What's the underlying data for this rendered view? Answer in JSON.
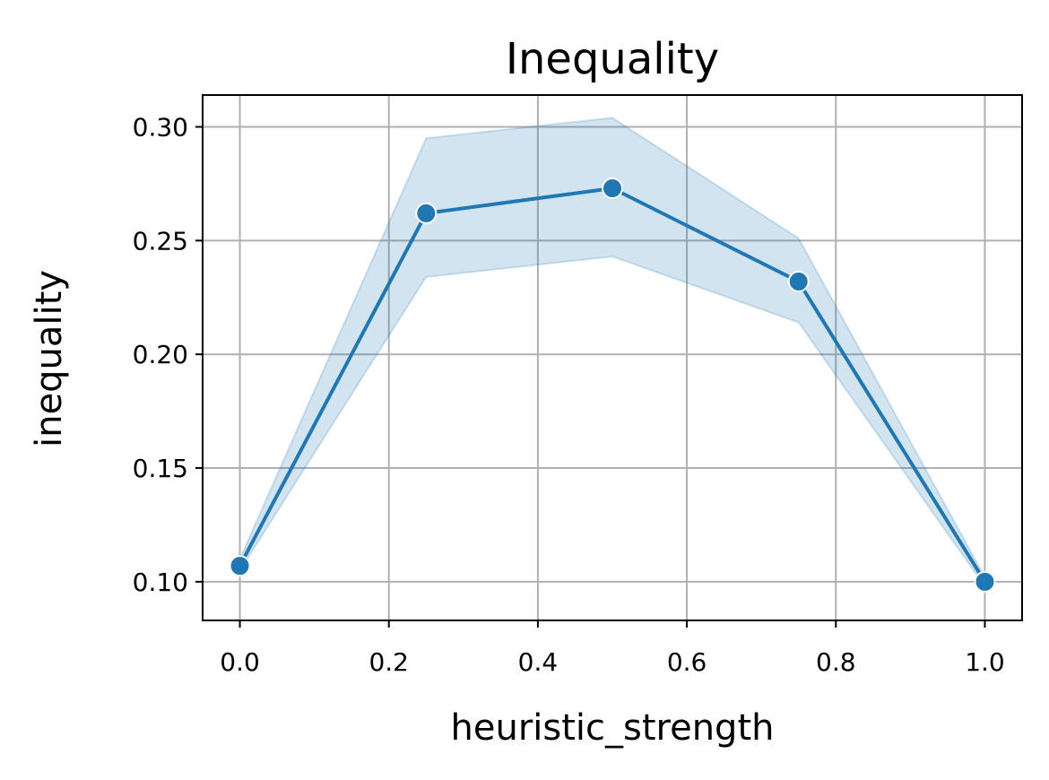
{
  "chart_data": {
    "type": "line",
    "title": "Inequality",
    "xlabel": "heuristic_strength",
    "ylabel": "inequality",
    "xlim": [
      -0.05,
      1.05
    ],
    "ylim": [
      0.083,
      0.314
    ],
    "xticks": [
      0.0,
      0.2,
      0.4,
      0.6,
      0.8,
      1.0
    ],
    "xtick_labels": [
      "0.0",
      "0.2",
      "0.4",
      "0.6",
      "0.8",
      "1.0"
    ],
    "yticks": [
      0.1,
      0.15,
      0.2,
      0.25,
      0.3
    ],
    "ytick_labels": [
      "0.10",
      "0.15",
      "0.20",
      "0.25",
      "0.30"
    ],
    "grid": true,
    "series": [
      {
        "x": [
          0.0,
          0.25,
          0.5,
          0.75,
          1.0
        ],
        "y": [
          0.107,
          0.262,
          0.273,
          0.232,
          0.1
        ],
        "ci_lower": [
          0.105,
          0.234,
          0.243,
          0.214,
          0.098
        ],
        "ci_upper": [
          0.11,
          0.295,
          0.304,
          0.251,
          0.102
        ],
        "color": "#1f77b4",
        "band_color": "#1f77b4"
      }
    ]
  }
}
